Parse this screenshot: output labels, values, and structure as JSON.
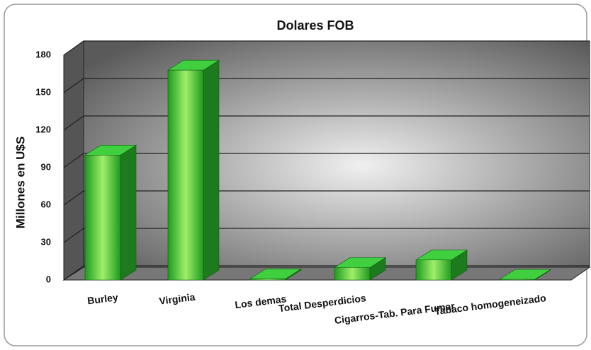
{
  "chart_data": {
    "type": "bar3d",
    "title": "Dolares FOB",
    "y_label": "Millones en U$S",
    "categories": [
      "Burley",
      "Virginia",
      "Los demas",
      "Total Desperdicios",
      "Cigarros-Tab. Para Fumar",
      "Tabaco homogeneizado"
    ],
    "values": [
      100,
      168,
      1,
      10,
      16,
      0.5
    ],
    "color": "#2db82d",
    "ylim": [
      0,
      180
    ],
    "yticks": [
      0,
      30,
      60,
      90,
      120,
      150,
      180
    ],
    "grid": true
  }
}
